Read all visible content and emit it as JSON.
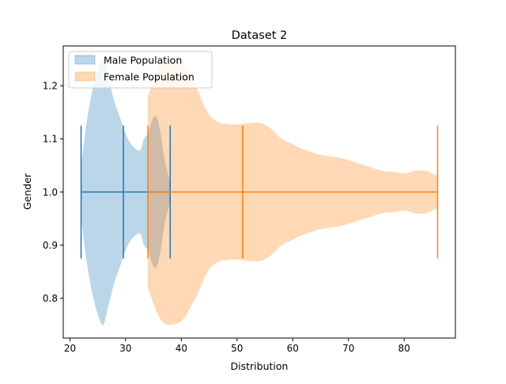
{
  "chart_data": {
    "type": "violin",
    "orientation": "horizontal",
    "title": "Dataset 2",
    "xlabel": "Distribution",
    "ylabel": "Gender",
    "xlim": [
      18.8,
      89.2
    ],
    "ylim": [
      0.725,
      1.275
    ],
    "xticks": [
      20,
      30,
      40,
      50,
      60,
      70,
      80
    ],
    "yticks": [
      0.8,
      0.9,
      1.0,
      1.1,
      1.2
    ],
    "ytick_labels": [
      "0.8",
      "0.9",
      "1.0",
      "1.1",
      "1.2"
    ],
    "grid": false,
    "legend_position": "top-left",
    "series": [
      {
        "name": "Male Population",
        "color": "#1f77b4",
        "position": 1.0,
        "min": 22,
        "median": 29.6,
        "max": 38,
        "density_profile": [
          [
            22,
            0.05
          ],
          [
            23,
            0.13
          ],
          [
            24,
            0.19
          ],
          [
            25,
            0.23
          ],
          [
            26,
            0.25
          ],
          [
            27,
            0.21
          ],
          [
            28,
            0.17
          ],
          [
            29,
            0.14
          ],
          [
            30,
            0.11
          ],
          [
            31,
            0.09
          ],
          [
            32,
            0.08
          ],
          [
            32.7,
            0.08
          ],
          [
            33.3,
            0.1
          ],
          [
            34,
            0.11
          ],
          [
            34.6,
            0.13
          ],
          [
            35,
            0.14
          ],
          [
            35.6,
            0.14
          ],
          [
            36.3,
            0.11
          ],
          [
            37,
            0.06
          ],
          [
            38,
            0.02
          ]
        ]
      },
      {
        "name": "Female Population",
        "color": "#ff7f0e",
        "position": 1.0,
        "min": 34,
        "median": 51,
        "max": 86,
        "density_profile": [
          [
            34,
            0.18
          ],
          [
            35,
            0.21
          ],
          [
            36,
            0.235
          ],
          [
            37,
            0.248
          ],
          [
            38,
            0.25
          ],
          [
            39,
            0.248
          ],
          [
            40,
            0.243
          ],
          [
            41,
            0.23
          ],
          [
            42,
            0.21
          ],
          [
            43,
            0.19
          ],
          [
            44,
            0.165
          ],
          [
            45,
            0.145
          ],
          [
            46,
            0.135
          ],
          [
            47,
            0.13
          ],
          [
            48,
            0.128
          ],
          [
            50,
            0.127
          ],
          [
            52,
            0.13
          ],
          [
            54,
            0.13
          ],
          [
            56,
            0.12
          ],
          [
            58,
            0.1
          ],
          [
            60,
            0.09
          ],
          [
            62,
            0.08
          ],
          [
            65,
            0.07
          ],
          [
            68,
            0.065
          ],
          [
            70,
            0.06
          ],
          [
            73,
            0.05
          ],
          [
            76,
            0.04
          ],
          [
            78,
            0.038
          ],
          [
            80,
            0.035
          ],
          [
            82,
            0.04
          ],
          [
            84,
            0.04
          ],
          [
            85,
            0.035
          ],
          [
            86,
            0.03
          ]
        ]
      }
    ]
  }
}
